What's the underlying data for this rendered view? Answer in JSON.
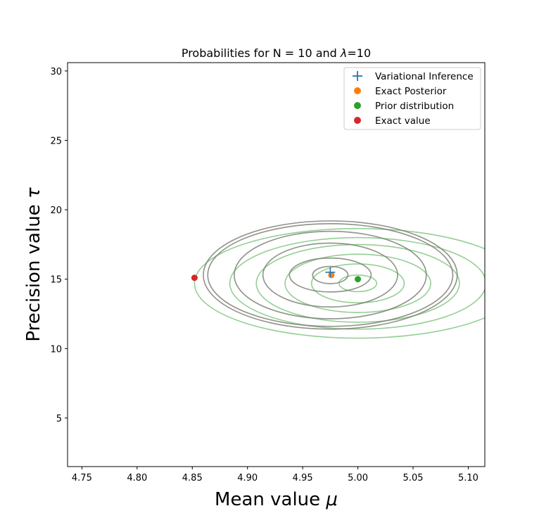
{
  "chart_data": {
    "type": "scatter",
    "title_prefix": "Probabilities for N = 10 and ",
    "title_symbol": "λ",
    "title_suffix": "=10",
    "xlabel_text": "Mean value ",
    "xlabel_symbol": "μ",
    "ylabel_text": "Precision value ",
    "ylabel_symbol": "τ",
    "xlim": [
      4.737,
      5.115
    ],
    "ylim": [
      1.5,
      30.6
    ],
    "xticks": [
      4.75,
      4.8,
      4.85,
      4.9,
      4.95,
      5.0,
      5.05,
      5.1
    ],
    "xtick_labels": [
      "4.75",
      "4.80",
      "4.85",
      "4.90",
      "4.95",
      "5.00",
      "5.05",
      "5.10"
    ],
    "yticks": [
      5,
      10,
      15,
      20,
      25,
      30
    ],
    "ytick_labels": [
      "5",
      "10",
      "15",
      "20",
      "25",
      "30"
    ],
    "grid": false,
    "legend_position": "top-right",
    "series": [
      {
        "name": "Variational Inference",
        "marker": "plus",
        "color": "#1f77b4",
        "x": [
          4.975
        ],
        "y": [
          15.5
        ]
      },
      {
        "name": "Exact Posterior",
        "marker": "circle",
        "color": "#ff7f0e",
        "x": [
          4.976
        ],
        "y": [
          15.3
        ]
      },
      {
        "name": "Prior distribution",
        "marker": "circle",
        "color": "#2ca02c",
        "x": [
          5.0
        ],
        "y": [
          15.0
        ]
      },
      {
        "name": "Exact value",
        "marker": "circle",
        "color": "#d62728",
        "x": [
          4.852
        ],
        "y": [
          15.1
        ]
      }
    ],
    "contours": [
      {
        "group": "prior",
        "color": "#2ca02c",
        "opacity": 0.5,
        "center": [
          5.0,
          14.7
        ],
        "levels": [
          [
            0.017,
            0.6
          ],
          [
            0.042,
            1.4
          ],
          [
            0.066,
            2.1
          ],
          [
            0.092,
            2.8
          ],
          [
            0.116,
            3.3
          ],
          [
            0.148,
            3.95
          ]
        ]
      },
      {
        "group": "exact_posterior",
        "color": "#ff7f0e",
        "opacity": 0.6,
        "center": [
          4.975,
          15.3
        ],
        "levels": [
          [
            0.016,
            0.62
          ],
          [
            0.037,
            1.22
          ],
          [
            0.061,
            2.3
          ],
          [
            0.087,
            3.15
          ],
          [
            0.111,
            3.7
          ],
          [
            0.115,
            3.9
          ]
        ]
      },
      {
        "group": "variational",
        "color": "#1f77b4",
        "opacity": 0.5,
        "center": [
          4.975,
          15.3
        ],
        "levels": [
          [
            0.016,
            0.62
          ],
          [
            0.037,
            1.22
          ],
          [
            0.061,
            2.3
          ],
          [
            0.087,
            3.15
          ],
          [
            0.111,
            3.7
          ],
          [
            0.115,
            3.9
          ]
        ]
      }
    ]
  }
}
